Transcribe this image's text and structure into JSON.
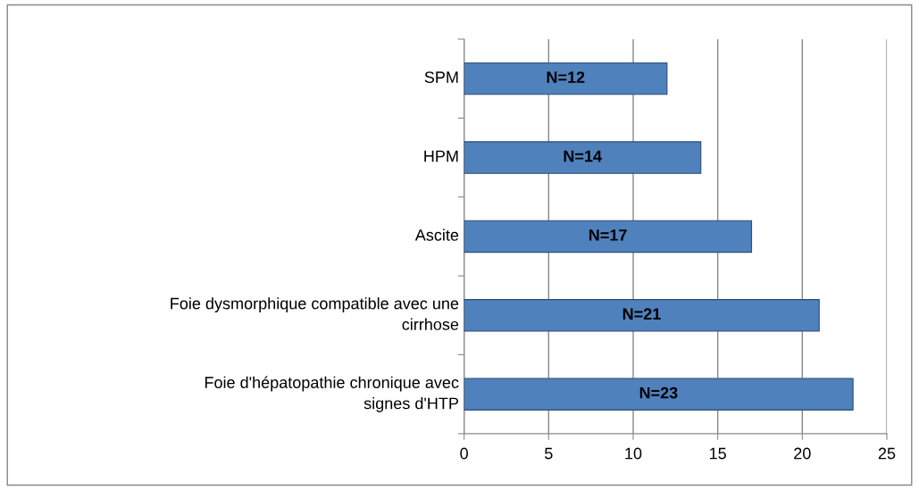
{
  "chart_data": {
    "type": "bar",
    "orientation": "horizontal",
    "categories": [
      "SPM",
      "HPM",
      "Ascite",
      "Foie dysmorphique compatible avec une cirrhose",
      "Foie d'hépatopathie chronique avec signes d'HTP"
    ],
    "values": [
      12,
      14,
      17,
      21,
      23
    ],
    "value_labels": [
      "N=12",
      "N=14",
      "N=17",
      "N=21",
      "N=23"
    ],
    "color": "#4f81bd",
    "xlim": [
      0,
      25
    ],
    "xticks": [
      0,
      5,
      10,
      15,
      20,
      25
    ],
    "grid": "x"
  }
}
